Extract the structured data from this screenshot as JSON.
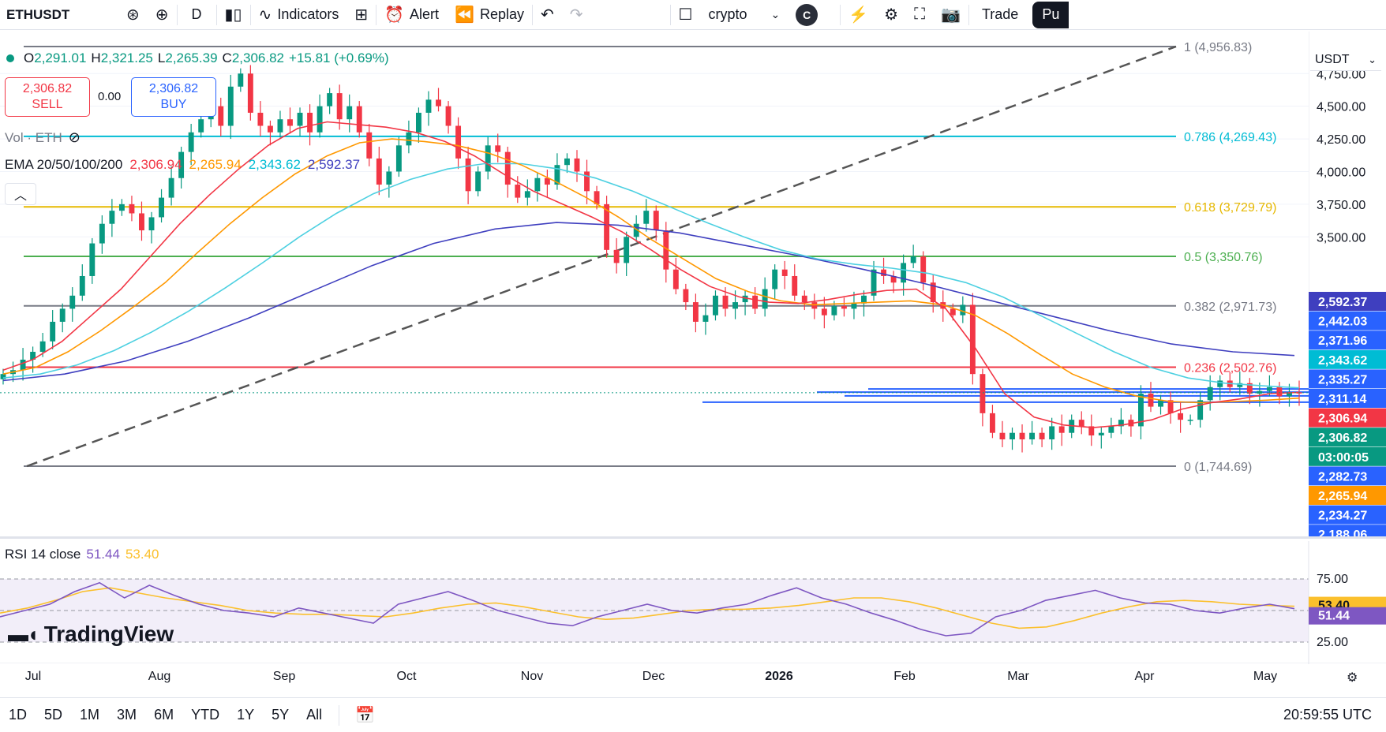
{
  "toolbar": {
    "symbol": "ETHUSDT",
    "interval": "D",
    "indicators_label": "Indicators",
    "alert_label": "Alert",
    "replay_label": "Replay",
    "layout_name": "crypto",
    "avatar_letter": "C",
    "trade_label": "Trade",
    "publish_label": "Pu"
  },
  "legend": {
    "o_key": "O",
    "o_val": "2,291.01",
    "h_key": "H",
    "h_val": "2,321.25",
    "l_key": "L",
    "l_val": "2,265.39",
    "c_key": "C",
    "c_val": "2,306.82",
    "change": "+15.81 (+0.69%)",
    "sell_price": "2,306.82",
    "sell_label": "SELL",
    "spread": "0.00",
    "buy_price": "2,306.82",
    "buy_label": "BUY",
    "vol_label": "Vol · ETH",
    "ema_label": "EMA 20/50/100/200",
    "ema20": "2,306.94",
    "ema50": "2,265.94",
    "ema100": "2,343.62",
    "ema200": "2,592.37",
    "rsi_label": "RSI 14 close",
    "rsi_val": "51.44",
    "rsi_ma": "53.40",
    "currency": "USDT",
    "logo_text": "TradingView"
  },
  "colors": {
    "up": "#089981",
    "down": "#f23645",
    "ema20": "#f23645",
    "ema50": "#ff9800",
    "ema100": "#4dd0e1",
    "ema200": "#3f3fbf",
    "rsi": "#7e57c2",
    "rsi_ma": "#fbc02d"
  },
  "chart_data": {
    "type": "candlestick",
    "price_axis_ticks": [
      "4,750.00",
      "4,500.00",
      "4,250.00",
      "4,000.00",
      "3,750.00",
      "3,500.00"
    ],
    "time_axis_ticks": [
      "Jul",
      "Aug",
      "Sep",
      "Oct",
      "Nov",
      "Dec",
      "2026",
      "Feb",
      "Mar",
      "Apr",
      "May"
    ],
    "fib_levels": [
      {
        "label": "1 (4,956.83)",
        "price": 4956.83,
        "color": "#787b86"
      },
      {
        "label": "0.786 (4,269.43)",
        "price": 4269.43,
        "color": "#00bcd4"
      },
      {
        "label": "0.618 (3,729.79)",
        "price": 3729.79,
        "color": "#e6b800"
      },
      {
        "label": "0.5 (3,350.76)",
        "price": 3350.76,
        "color": "#4caf50"
      },
      {
        "label": "0.382 (2,971.73)",
        "price": 2971.73,
        "color": "#787b86"
      },
      {
        "label": "0.236 (2,502.76)",
        "price": 2502.76,
        "color": "#f23645"
      },
      {
        "label": "0 (1,744.69)",
        "price": 1744.69,
        "color": "#787b86"
      }
    ],
    "price_tags": [
      {
        "text": "2,592.37",
        "bg": "#3f3fbf"
      },
      {
        "text": "2,442.03",
        "bg": "#2962ff"
      },
      {
        "text": "2,371.96",
        "bg": "#2962ff"
      },
      {
        "text": "2,343.62",
        "bg": "#00bcd4"
      },
      {
        "text": "2,335.27",
        "bg": "#2962ff"
      },
      {
        "text": "2,311.14",
        "bg": "#2962ff"
      },
      {
        "text": "2,306.94",
        "bg": "#f23645"
      },
      {
        "text": "2,306.82",
        "bg": "#089981"
      },
      {
        "text": "03:00:05",
        "bg": "#089981"
      },
      {
        "text": "2,282.73",
        "bg": "#2962ff"
      },
      {
        "text": "2,265.94",
        "bg": "#ff9800"
      },
      {
        "text": "2,234.27",
        "bg": "#2962ff"
      },
      {
        "text": "2,188.06",
        "bg": "#2962ff"
      }
    ],
    "closes": [
      2450,
      2480,
      2560,
      2620,
      2700,
      2850,
      2950,
      3050,
      3200,
      3450,
      3600,
      3700,
      3750,
      3680,
      3550,
      3650,
      3800,
      3950,
      4150,
      4300,
      4400,
      4500,
      4350,
      4650,
      4750,
      4450,
      4350,
      4300,
      4400,
      4350,
      4450,
      4300,
      4500,
      4600,
      4400,
      4500,
      4300,
      4100,
      3900,
      4000,
      4200,
      4300,
      4450,
      4550,
      4500,
      4350,
      4100,
      3850,
      4000,
      4200,
      4150,
      3900,
      3800,
      3850,
      3950,
      3900,
      4050,
      4100,
      4000,
      3850,
      3750,
      3400,
      3300,
      3500,
      3600,
      3700,
      3550,
      3250,
      3100,
      3000,
      2850,
      2900,
      3050,
      2950,
      3000,
      3050,
      2950,
      3100,
      3250,
      3200,
      3050,
      3000,
      2950,
      2900,
      2970,
      2950,
      2990,
      3050,
      3250,
      3200,
      3150,
      3300,
      3350,
      3150,
      3000,
      2950,
      2900,
      2980,
      2450,
      2150,
      2000,
      1950,
      2000,
      1950,
      2000,
      1950,
      2050,
      2000,
      2100,
      2050,
      1980,
      2000,
      2050,
      2100,
      2050,
      2300,
      2200,
      2250,
      2150,
      2100,
      2100,
      2250,
      2350,
      2400,
      2350,
      2380,
      2300,
      2320,
      2350,
      2280,
      2310,
      2306.82
    ],
    "ema20_series": [
      2480,
      2560,
      2700,
      2900,
      3100,
      3350,
      3600,
      3820,
      4020,
      4200,
      4330,
      4380,
      4360,
      4340,
      4300,
      4230,
      4120,
      3980,
      3850,
      3750,
      3650,
      3540,
      3400,
      3250,
      3120,
      3040,
      3000,
      2990,
      3020,
      3060,
      3090,
      3100,
      2950,
      2650,
      2300,
      2120,
      2060,
      2040,
      2060,
      2100,
      2180,
      2230,
      2260,
      2300,
      2310
    ],
    "ema50_series": [
      2450,
      2500,
      2620,
      2780,
      2960,
      3150,
      3380,
      3600,
      3800,
      3980,
      4120,
      4220,
      4250,
      4230,
      4200,
      4140,
      4050,
      3930,
      3800,
      3650,
      3480,
      3330,
      3180,
      3080,
      3010,
      2980,
      2990,
      3000,
      3010,
      2980,
      2900,
      2760,
      2600,
      2450,
      2350,
      2280,
      2240,
      2230,
      2240,
      2250,
      2266
    ],
    "ema100_series": [
      2420,
      2450,
      2520,
      2630,
      2770,
      2930,
      3110,
      3300,
      3500,
      3680,
      3830,
      3940,
      4020,
      4060,
      4060,
      4020,
      3950,
      3850,
      3730,
      3610,
      3500,
      3400,
      3330,
      3290,
      3260,
      3220,
      3150,
      3040,
      2900,
      2760,
      2620,
      2500,
      2420,
      2380,
      2360,
      2344
    ],
    "ema200_series": [
      2400,
      2450,
      2550,
      2700,
      2880,
      3080,
      3280,
      3450,
      3560,
      3610,
      3590,
      3530,
      3440,
      3350,
      3250,
      3140,
      3020,
      2900,
      2780,
      2680,
      2620,
      2592
    ],
    "rsi_series": [
      45,
      50,
      55,
      65,
      72,
      60,
      70,
      62,
      55,
      50,
      48,
      45,
      52,
      48,
      44,
      40,
      55,
      60,
      65,
      58,
      50,
      45,
      40,
      38,
      45,
      50,
      55,
      50,
      48,
      52,
      55,
      62,
      68,
      60,
      55,
      48,
      42,
      35,
      30,
      32,
      45,
      50,
      58,
      62,
      66,
      60,
      56,
      55,
      50,
      48,
      52,
      55,
      51.44
    ],
    "rsi_ma_series": [
      48,
      52,
      58,
      65,
      68,
      64,
      60,
      57,
      54,
      50,
      48,
      47,
      47,
      46,
      45,
      48,
      52,
      55,
      56,
      53,
      49,
      45,
      43,
      44,
      47,
      50,
      51,
      51,
      52,
      54,
      57,
      60,
      60,
      57,
      52,
      46,
      40,
      36,
      37,
      42,
      48,
      53,
      57,
      58,
      57,
      55,
      54,
      53.4
    ],
    "rsi_axis_ticks": [
      "75.00",
      "25.00"
    ]
  },
  "bottom": {
    "ranges": [
      "1D",
      "5D",
      "1M",
      "3M",
      "6M",
      "YTD",
      "1Y",
      "5Y",
      "All"
    ],
    "clock": "20:59:55 UTC"
  }
}
